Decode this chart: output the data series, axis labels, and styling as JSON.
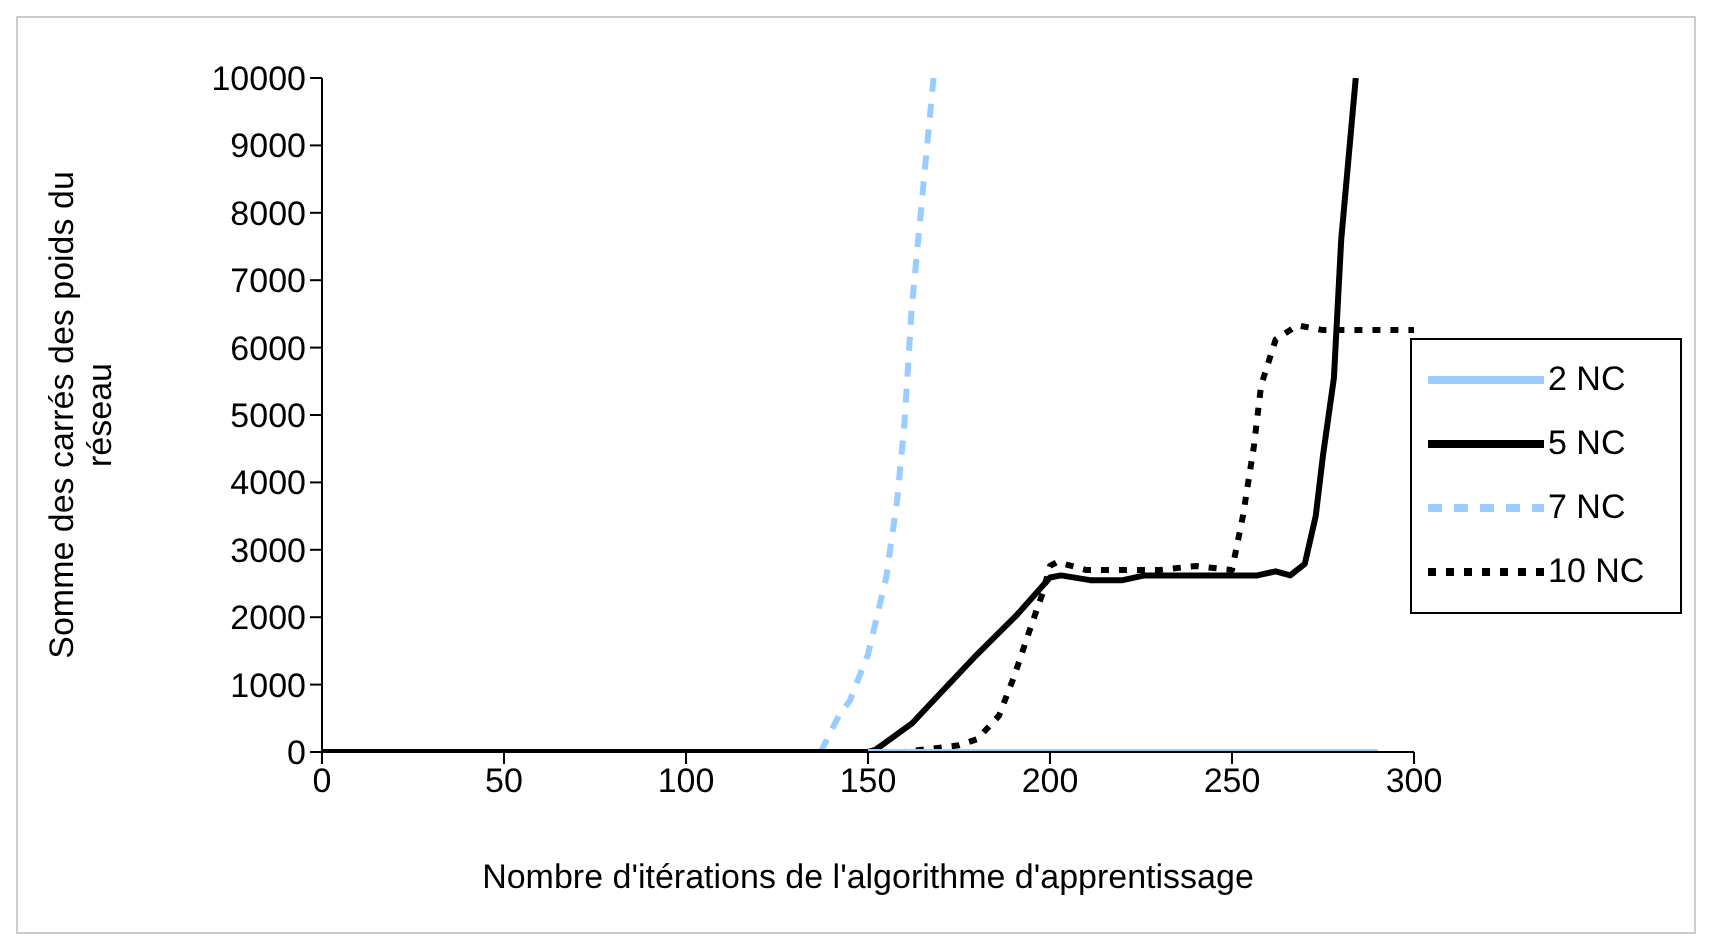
{
  "chart_data": {
    "type": "line",
    "xlabel": "Nombre d'itérations de l'algorithme d'apprentissage",
    "ylabel": "Somme des carrés des poids du réseau",
    "xlim": [
      0,
      300
    ],
    "xticks": [
      0,
      50,
      100,
      150,
      200,
      250,
      300
    ],
    "ylim": [
      0,
      10000
    ],
    "yticks": [
      0,
      1000,
      2000,
      3000,
      4000,
      5000,
      6000,
      7000,
      8000,
      9000,
      10000
    ],
    "grid": false,
    "legend": "right",
    "marker": "none",
    "series": [
      {
        "name": "2 NC",
        "color": "#99ccff",
        "line_style": "solid",
        "x": [
          150,
          290
        ],
        "values": [
          0,
          0
        ]
      },
      {
        "name": "5 NC",
        "color": "#000000",
        "line_style": "solid",
        "x": [
          0,
          150,
          152,
          162,
          170,
          180,
          191,
          200,
          203,
          211,
          220,
          226,
          257,
          262,
          266,
          270,
          273,
          275,
          278,
          280,
          284
        ],
        "values": [
          0,
          0,
          30,
          420,
          880,
          1450,
          2040,
          2590,
          2620,
          2550,
          2550,
          2620,
          2620,
          2680,
          2620,
          2790,
          3500,
          4400,
          5550,
          7600,
          10000
        ]
      },
      {
        "name": "7 NC",
        "color": "#99ccff",
        "line_style": "dashed",
        "x": [
          137,
          142,
          145,
          150,
          155,
          158,
          160,
          162,
          165,
          168
        ],
        "values": [
          0,
          540,
          760,
          1450,
          2590,
          3730,
          4870,
          6580,
          8290,
          10000
        ]
      },
      {
        "name": "10 NC",
        "color": "#000000",
        "line_style": "dotted",
        "x": [
          0,
          160,
          175,
          180,
          186,
          190,
          195,
          198,
          200,
          202,
          210,
          230,
          240,
          250,
          253,
          256,
          258,
          262,
          268,
          275,
          300
        ],
        "values": [
          0,
          0,
          100,
          190,
          540,
          1100,
          1900,
          2360,
          2760,
          2820,
          2700,
          2700,
          2760,
          2700,
          3500,
          4530,
          5440,
          6120,
          6330,
          6260,
          6260
        ]
      }
    ]
  }
}
